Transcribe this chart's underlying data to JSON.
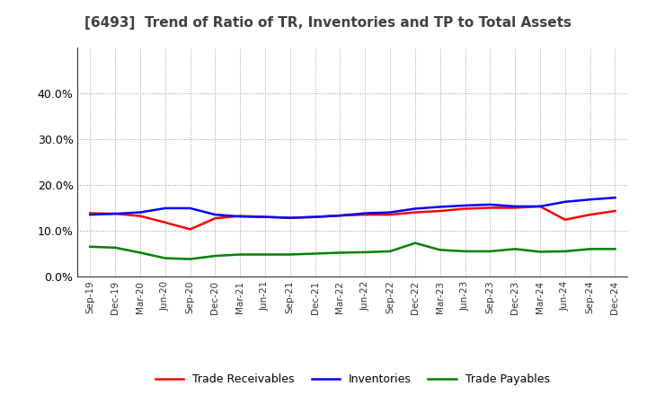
{
  "title": "[6493]  Trend of Ratio of TR, Inventories and TP to Total Assets",
  "xlabels": [
    "Sep-19",
    "Dec-19",
    "Mar-20",
    "Jun-20",
    "Sep-20",
    "Dec-20",
    "Mar-21",
    "Jun-21",
    "Sep-21",
    "Dec-21",
    "Mar-22",
    "Jun-22",
    "Sep-22",
    "Dec-22",
    "Mar-23",
    "Jun-23",
    "Sep-23",
    "Dec-23",
    "Mar-24",
    "Jun-24",
    "Sep-24",
    "Dec-24"
  ],
  "trade_receivables": [
    0.138,
    0.137,
    0.132,
    0.118,
    0.103,
    0.127,
    0.132,
    0.13,
    0.128,
    0.13,
    0.133,
    0.135,
    0.135,
    0.14,
    0.143,
    0.148,
    0.15,
    0.15,
    0.153,
    0.124,
    0.135,
    0.143
  ],
  "inventories": [
    0.135,
    0.137,
    0.14,
    0.149,
    0.149,
    0.135,
    0.131,
    0.13,
    0.128,
    0.13,
    0.133,
    0.138,
    0.14,
    0.148,
    0.152,
    0.155,
    0.157,
    0.153,
    0.153,
    0.163,
    0.168,
    0.172
  ],
  "trade_payables": [
    0.065,
    0.063,
    0.052,
    0.04,
    0.038,
    0.045,
    0.048,
    0.048,
    0.048,
    0.05,
    0.052,
    0.053,
    0.055,
    0.073,
    0.058,
    0.055,
    0.055,
    0.06,
    0.054,
    0.055,
    0.06,
    0.06
  ],
  "ylim": [
    0.0,
    0.5
  ],
  "yticks": [
    0.0,
    0.1,
    0.2,
    0.3,
    0.4
  ],
  "line_colors": {
    "trade_receivables": "#ff0000",
    "inventories": "#0000ff",
    "trade_payables": "#008000"
  },
  "line_width": 1.8,
  "background_color": "#ffffff",
  "grid_color": "#999999",
  "title_color": "#404040",
  "legend_labels": [
    "Trade Receivables",
    "Inventories",
    "Trade Payables"
  ]
}
